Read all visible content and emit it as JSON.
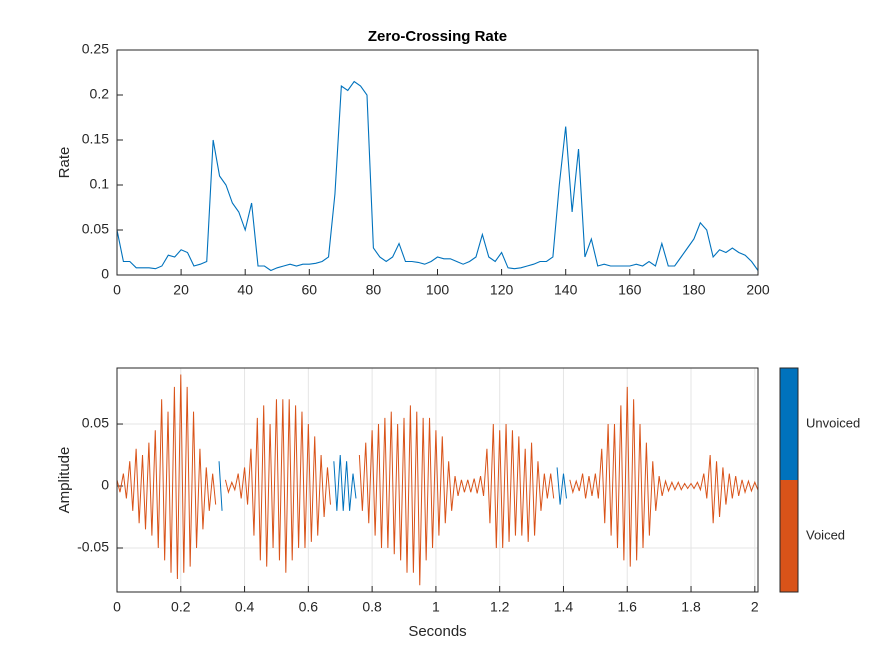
{
  "chart_data": [
    {
      "type": "line",
      "title": "Zero-Crossing Rate",
      "y_label": "Rate",
      "x": [
        0,
        2,
        4,
        6,
        8,
        10,
        12,
        14,
        16,
        18,
        20,
        22,
        24,
        26,
        28,
        30,
        32,
        34,
        36,
        38,
        40,
        42,
        44,
        46,
        48,
        50,
        52,
        54,
        56,
        58,
        60,
        62,
        64,
        66,
        68,
        70,
        72,
        74,
        76,
        78,
        80,
        82,
        84,
        86,
        88,
        90,
        92,
        94,
        96,
        98,
        100,
        102,
        104,
        106,
        108,
        110,
        112,
        114,
        116,
        118,
        120,
        122,
        124,
        126,
        128,
        130,
        132,
        134,
        136,
        138,
        140,
        142,
        144,
        146,
        148,
        150,
        152,
        154,
        156,
        158,
        160,
        162,
        164,
        166,
        168,
        170,
        172,
        174,
        176,
        178,
        180,
        182,
        184,
        186,
        188,
        190,
        192,
        194,
        196,
        198,
        200
      ],
      "series": [
        {
          "color": "#0072bd",
          "values": [
            0.05,
            0.015,
            0.015,
            0.008,
            0.008,
            0.008,
            0.007,
            0.01,
            0.022,
            0.02,
            0.028,
            0.025,
            0.01,
            0.012,
            0.015,
            0.15,
            0.11,
            0.1,
            0.08,
            0.07,
            0.05,
            0.08,
            0.01,
            0.01,
            0.005,
            0.008,
            0.01,
            0.012,
            0.01,
            0.012,
            0.012,
            0.013,
            0.015,
            0.02,
            0.09,
            0.21,
            0.205,
            0.215,
            0.21,
            0.2,
            0.03,
            0.02,
            0.015,
            0.02,
            0.035,
            0.015,
            0.015,
            0.014,
            0.012,
            0.015,
            0.02,
            0.018,
            0.018,
            0.015,
            0.012,
            0.015,
            0.02,
            0.045,
            0.02,
            0.015,
            0.025,
            0.008,
            0.007,
            0.008,
            0.01,
            0.012,
            0.015,
            0.015,
            0.02,
            0.1,
            0.165,
            0.07,
            0.14,
            0.02,
            0.04,
            0.01,
            0.012,
            0.01,
            0.01,
            0.01,
            0.01,
            0.012,
            0.01,
            0.015,
            0.01,
            0.035,
            0.01,
            0.01,
            0.02,
            0.03,
            0.04,
            0.058,
            0.05,
            0.02,
            0.028,
            0.025,
            0.03,
            0.025,
            0.022,
            0.015,
            0.005
          ]
        }
      ],
      "xlim": [
        0,
        200
      ],
      "xticks": [
        0,
        20,
        40,
        60,
        80,
        100,
        120,
        140,
        160,
        180,
        200
      ],
      "ylim": [
        0,
        0.25
      ],
      "yticks": [
        0,
        0.05,
        0.1,
        0.15,
        0.2,
        0.25
      ],
      "grid": false
    },
    {
      "type": "waveform",
      "x_label": "Seconds",
      "y_label": "Amplitude",
      "x": [
        0,
        0.02,
        0.04,
        0.06,
        0.08,
        0.1,
        0.12,
        0.14,
        0.16,
        0.18,
        0.2,
        0.22,
        0.24,
        0.26,
        0.28,
        0.3,
        0.32,
        0.34,
        0.36,
        0.38,
        0.4,
        0.42,
        0.44,
        0.46,
        0.48,
        0.5,
        0.52,
        0.54,
        0.56,
        0.58,
        0.6,
        0.62,
        0.64,
        0.66,
        0.68,
        0.7,
        0.72,
        0.74,
        0.76,
        0.78,
        0.8,
        0.82,
        0.84,
        0.86,
        0.88,
        0.9,
        0.92,
        0.94,
        0.96,
        0.98,
        1,
        1.02,
        1.04,
        1.06,
        1.08,
        1.1,
        1.12,
        1.14,
        1.16,
        1.18,
        1.2,
        1.22,
        1.24,
        1.26,
        1.28,
        1.3,
        1.32,
        1.34,
        1.36,
        1.38,
        1.4,
        1.42,
        1.44,
        1.46,
        1.48,
        1.5,
        1.52,
        1.54,
        1.56,
        1.58,
        1.6,
        1.62,
        1.64,
        1.66,
        1.68,
        1.7,
        1.72,
        1.74,
        1.76,
        1.78,
        1.8,
        1.82,
        1.84,
        1.86,
        1.88,
        1.9,
        1.92,
        1.94,
        1.96,
        1.98,
        2
      ],
      "series": [
        {
          "name": "Voiced",
          "color": "#d95319",
          "upper": [
            0.005,
            0.01,
            0.02,
            0.03,
            0.025,
            0.035,
            0.045,
            0.07,
            0.06,
            0.08,
            0.09,
            0.08,
            0.06,
            0.03,
            0.015,
            0.01,
            null,
            0.005,
            0.003,
            0.01,
            0.015,
            0.03,
            0.055,
            0.065,
            0.05,
            0.07,
            0.07,
            0.07,
            0.065,
            0.06,
            0.05,
            0.04,
            0.025,
            0.015,
            null,
            null,
            null,
            null,
            0.025,
            0.035,
            0.045,
            0.05,
            0.055,
            0.06,
            0.05,
            0.055,
            0.065,
            0.06,
            0.055,
            0.055,
            0.045,
            0.04,
            0.02,
            0.008,
            0.005,
            0.005,
            0.006,
            0.008,
            0.03,
            0.05,
            0.045,
            0.05,
            0.045,
            0.04,
            0.03,
            0.035,
            0.02,
            0.01,
            0.01,
            null,
            null,
            0.005,
            0.004,
            0.01,
            0.008,
            0.01,
            0.03,
            0.05,
            0.05,
            0.065,
            0.08,
            0.07,
            0.05,
            0.035,
            0.02,
            0.008,
            0.004,
            0.003,
            0.003,
            0.002,
            0.002,
            0.003,
            0.01,
            0.025,
            0.02,
            0.015,
            0.01,
            0.008,
            0.005,
            0.004,
            0.003
          ],
          "lower": [
            -0.005,
            -0.01,
            -0.02,
            -0.03,
            -0.035,
            -0.04,
            -0.05,
            -0.06,
            -0.07,
            -0.075,
            -0.07,
            -0.065,
            -0.05,
            -0.035,
            -0.02,
            -0.015,
            null,
            -0.005,
            -0.003,
            -0.01,
            -0.015,
            -0.04,
            -0.06,
            -0.065,
            -0.05,
            -0.06,
            -0.07,
            -0.06,
            -0.05,
            -0.05,
            -0.045,
            -0.04,
            -0.025,
            -0.015,
            null,
            null,
            null,
            null,
            -0.02,
            -0.03,
            -0.04,
            -0.05,
            -0.05,
            -0.055,
            -0.06,
            -0.07,
            -0.07,
            -0.08,
            -0.06,
            -0.05,
            -0.04,
            -0.03,
            -0.02,
            -0.008,
            -0.005,
            -0.005,
            -0.006,
            -0.008,
            -0.03,
            -0.05,
            -0.05,
            -0.045,
            -0.04,
            -0.04,
            -0.045,
            -0.04,
            -0.02,
            -0.01,
            -0.01,
            null,
            null,
            -0.005,
            -0.004,
            -0.01,
            -0.008,
            -0.01,
            -0.03,
            -0.04,
            -0.05,
            -0.06,
            -0.065,
            -0.06,
            -0.05,
            -0.04,
            -0.02,
            -0.008,
            -0.004,
            -0.003,
            -0.003,
            -0.002,
            -0.002,
            -0.003,
            -0.01,
            -0.03,
            -0.025,
            -0.015,
            -0.01,
            -0.008,
            -0.005,
            -0.004,
            -0.003
          ]
        },
        {
          "name": "Unvoiced",
          "color": "#0072bd",
          "upper": [
            null,
            null,
            null,
            null,
            null,
            null,
            null,
            null,
            null,
            null,
            null,
            null,
            null,
            null,
            null,
            null,
            0.02,
            null,
            null,
            null,
            null,
            null,
            null,
            null,
            null,
            null,
            null,
            null,
            null,
            null,
            null,
            null,
            null,
            null,
            0.02,
            0.025,
            0.02,
            0.01,
            null,
            null,
            null,
            null,
            null,
            null,
            null,
            null,
            null,
            null,
            null,
            null,
            null,
            null,
            null,
            null,
            null,
            null,
            null,
            null,
            null,
            null,
            null,
            null,
            null,
            null,
            null,
            null,
            null,
            null,
            null,
            0.015,
            0.01,
            null,
            null,
            null,
            null,
            null,
            null,
            null,
            null,
            null,
            null,
            null,
            null,
            null,
            null,
            null,
            null,
            null,
            null,
            null,
            null,
            null,
            null,
            null,
            null,
            null,
            null,
            null,
            null,
            null,
            null
          ],
          "lower": [
            null,
            null,
            null,
            null,
            null,
            null,
            null,
            null,
            null,
            null,
            null,
            null,
            null,
            null,
            null,
            null,
            -0.02,
            null,
            null,
            null,
            null,
            null,
            null,
            null,
            null,
            null,
            null,
            null,
            null,
            null,
            null,
            null,
            null,
            null,
            -0.02,
            -0.02,
            -0.02,
            -0.01,
            null,
            null,
            null,
            null,
            null,
            null,
            null,
            null,
            null,
            null,
            null,
            null,
            null,
            null,
            null,
            null,
            null,
            null,
            null,
            null,
            null,
            null,
            null,
            null,
            null,
            null,
            null,
            null,
            null,
            null,
            null,
            -0.015,
            -0.01,
            null,
            null,
            null,
            null,
            null,
            null,
            null,
            null,
            null,
            null,
            null,
            null,
            null,
            null,
            null,
            null,
            null,
            null,
            null,
            null,
            null,
            null,
            null,
            null,
            null,
            null,
            null,
            null,
            null,
            null
          ]
        }
      ],
      "xlim": [
        0,
        2.01
      ],
      "xticks": [
        0,
        0.2,
        0.4,
        0.6,
        0.8,
        1,
        1.2,
        1.4,
        1.6,
        1.8,
        2
      ],
      "ylim": [
        -0.0855,
        0.0952
      ],
      "yticks": [
        -0.05,
        0,
        0.05
      ],
      "grid": true
    }
  ]
}
